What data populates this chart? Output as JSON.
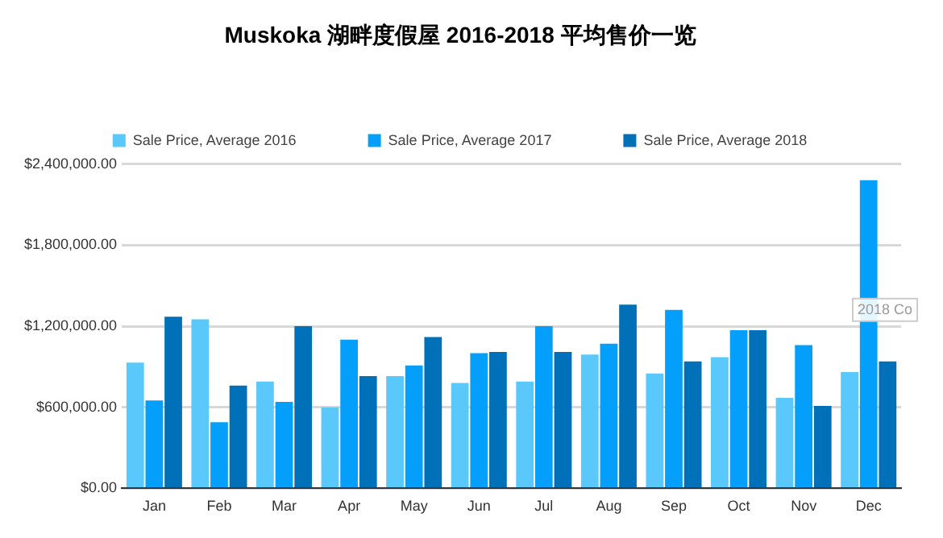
{
  "chart_data": {
    "type": "bar",
    "title": "Muskoka 湖畔度假屋 2016-2018 平均售价一览",
    "categories": [
      "Jan",
      "Feb",
      "Mar",
      "Apr",
      "May",
      "Jun",
      "Jul",
      "Aug",
      "Sep",
      "Oct",
      "Nov",
      "Dec"
    ],
    "series": [
      {
        "name": "Sale Price, Average 2016",
        "color": "#5ac8fa",
        "values": [
          930000,
          1250000,
          790000,
          600000,
          830000,
          780000,
          790000,
          990000,
          850000,
          970000,
          670000,
          860000
        ]
      },
      {
        "name": "Sale Price, Average 2017",
        "color": "#049ffa",
        "values": [
          650000,
          490000,
          640000,
          1100000,
          910000,
          1000000,
          1200000,
          1070000,
          1320000,
          1170000,
          1060000,
          2280000
        ]
      },
      {
        "name": "Sale Price, Average 2018",
        "color": "#0070b8",
        "values": [
          1270000,
          760000,
          1200000,
          830000,
          1120000,
          1010000,
          1010000,
          1360000,
          940000,
          1170000,
          610000,
          940000
        ]
      }
    ],
    "ylim": [
      0,
      2400000
    ],
    "yticks": [
      {
        "value": 0,
        "label": "$0.00"
      },
      {
        "value": 600000,
        "label": "$600,000.00"
      },
      {
        "value": 1200000,
        "label": "$1,200,000.00"
      },
      {
        "value": 1800000,
        "label": "$1,800,000.00"
      },
      {
        "value": 2400000,
        "label": "$2,400,000.00"
      }
    ],
    "grid": "y",
    "legend": "top",
    "annotations": [
      "2018 Co"
    ]
  }
}
